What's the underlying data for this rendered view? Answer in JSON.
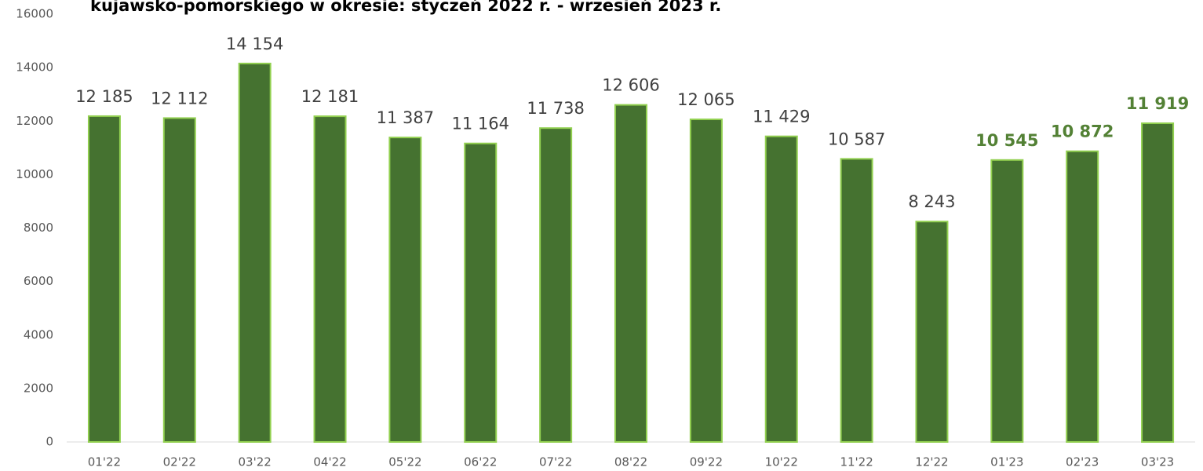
{
  "chart_data": {
    "type": "bar",
    "title": "kujawsko-pomorskiego w okresie: styczeń 2022 r. - wrzesień 2023 r.",
    "categories": [
      "01'22",
      "02'22",
      "03'22",
      "04'22",
      "05'22",
      "06'22",
      "07'22",
      "08'22",
      "09'22",
      "10'22",
      "11'22",
      "12'22",
      "01'23",
      "02'23",
      "03'23"
    ],
    "values": [
      12185,
      12112,
      14154,
      12181,
      11387,
      11164,
      11738,
      12606,
      12065,
      11429,
      10587,
      8243,
      10545,
      10872,
      11919
    ],
    "value_labels": [
      "12 185",
      "12 112",
      "14 154",
      "12 181",
      "11 387",
      "11 164",
      "11 738",
      "12 606",
      "12 065",
      "11 429",
      "10 587",
      "8 243",
      "10 545",
      "10 872",
      "11 919"
    ],
    "highlighted": [
      false,
      false,
      false,
      false,
      false,
      false,
      false,
      false,
      false,
      false,
      false,
      false,
      true,
      true,
      true
    ],
    "color": "#457230",
    "edge_color": "#92d050",
    "highlight_color": "#538135",
    "ylim": [
      0,
      16000
    ],
    "yticks": [
      0,
      2000,
      4000,
      6000,
      8000,
      10000,
      12000,
      14000,
      16000
    ],
    "grid": false
  }
}
